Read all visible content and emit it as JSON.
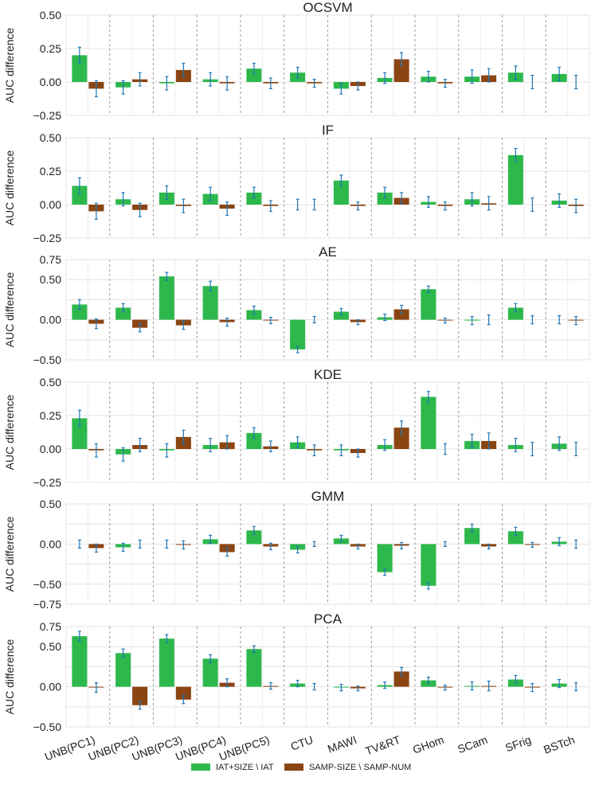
{
  "chart_data": {
    "type": "bar",
    "ylabel": "AUC difference",
    "categories": [
      "UNB(PC1)",
      "UNB(PC2)",
      "UNB(PC3)",
      "UNB(PC4)",
      "UNB(PC5)",
      "CTU",
      "MAWI",
      "TV&RT",
      "GHom",
      "SCam",
      "SFrig",
      "BSTch"
    ],
    "legend": {
      "placement": "bottom-center",
      "entries": [
        {
          "name": "IAT+SIZE \\ IAT",
          "color": "#2db84c"
        },
        {
          "name": "SAMP-SIZE \\ SAMP-NUM",
          "color": "#8b4513"
        }
      ]
    },
    "error_bar_color": "#1f77b4",
    "grid": true,
    "panels": [
      {
        "title": "OCSVM",
        "ylim": [
          -0.25,
          0.5
        ],
        "yticks": [
          -0.25,
          0.0,
          0.25,
          0.5
        ],
        "ytick_labels": [
          "−0.25",
          "0.00",
          "0.25",
          "0.50"
        ],
        "series": [
          {
            "values": [
              0.2,
              -0.04,
              -0.01,
              0.02,
              0.1,
              0.07,
              -0.05,
              0.03,
              0.04,
              0.04,
              0.07,
              0.06
            ],
            "errors": [
              0.06,
              0.05,
              0.05,
              0.05,
              0.04,
              0.04,
              0.04,
              0.04,
              0.04,
              0.05,
              0.05,
              0.05
            ]
          },
          {
            "values": [
              -0.05,
              0.02,
              0.09,
              -0.01,
              -0.01,
              -0.01,
              -0.03,
              0.17,
              -0.01,
              0.05,
              0.0,
              0.0
            ],
            "errors": [
              0.06,
              0.05,
              0.05,
              0.05,
              0.04,
              0.03,
              0.03,
              0.05,
              0.03,
              0.05,
              0.05,
              0.05
            ]
          }
        ]
      },
      {
        "title": "IF",
        "ylim": [
          -0.25,
          0.5
        ],
        "yticks": [
          -0.25,
          0.0,
          0.25,
          0.5
        ],
        "ytick_labels": [
          "−0.25",
          "0.00",
          "0.25",
          "0.50"
        ],
        "series": [
          {
            "values": [
              0.14,
              0.04,
              0.09,
              0.08,
              0.09,
              0.0,
              0.18,
              0.09,
              0.02,
              0.04,
              0.37,
              0.03
            ],
            "errors": [
              0.06,
              0.05,
              0.05,
              0.05,
              0.04,
              0.04,
              0.04,
              0.04,
              0.04,
              0.05,
              0.05,
              0.05
            ]
          },
          {
            "values": [
              -0.05,
              -0.04,
              -0.01,
              -0.03,
              -0.01,
              0.0,
              -0.01,
              0.05,
              -0.01,
              0.01,
              0.0,
              -0.01
            ],
            "errors": [
              0.06,
              0.05,
              0.05,
              0.05,
              0.04,
              0.04,
              0.03,
              0.04,
              0.03,
              0.05,
              0.05,
              0.05
            ]
          }
        ]
      },
      {
        "title": "AE",
        "ylim": [
          -0.5,
          0.75
        ],
        "yticks": [
          -0.5,
          -0.25,
          0.0,
          0.25,
          0.5,
          0.75
        ],
        "ytick_labels": [
          "−0.50",
          "",
          "0.00",
          "",
          "0.50",
          "0.75"
        ],
        "series": [
          {
            "values": [
              0.19,
              0.15,
              0.54,
              0.42,
              0.12,
              -0.37,
              0.1,
              0.03,
              0.38,
              -0.01,
              0.15,
              0.0
            ],
            "errors": [
              0.06,
              0.05,
              0.05,
              0.06,
              0.05,
              0.04,
              0.04,
              0.04,
              0.04,
              0.05,
              0.05,
              0.05
            ]
          },
          {
            "values": [
              -0.05,
              -0.1,
              -0.07,
              -0.03,
              -0.01,
              0.0,
              -0.03,
              0.13,
              -0.01,
              0.0,
              0.0,
              -0.01
            ],
            "errors": [
              0.06,
              0.05,
              0.05,
              0.05,
              0.04,
              0.04,
              0.03,
              0.05,
              0.03,
              0.06,
              0.05,
              0.05
            ]
          }
        ]
      },
      {
        "title": "KDE",
        "ylim": [
          -0.25,
          0.5
        ],
        "yticks": [
          -0.25,
          0.0,
          0.25,
          0.5
        ],
        "ytick_labels": [
          "−0.25",
          "0.00",
          "0.25",
          "0.50"
        ],
        "series": [
          {
            "values": [
              0.23,
              -0.04,
              -0.01,
              0.03,
              0.12,
              0.05,
              -0.01,
              0.03,
              0.39,
              0.06,
              0.03,
              0.04
            ],
            "errors": [
              0.06,
              0.05,
              0.05,
              0.05,
              0.04,
              0.04,
              0.04,
              0.04,
              0.04,
              0.05,
              0.05,
              0.05
            ]
          },
          {
            "values": [
              -0.01,
              0.03,
              0.09,
              0.05,
              0.02,
              -0.01,
              -0.03,
              0.16,
              0.0,
              0.06,
              0.0,
              0.0
            ],
            "errors": [
              0.05,
              0.05,
              0.05,
              0.05,
              0.04,
              0.04,
              0.03,
              0.05,
              0.04,
              0.06,
              0.05,
              0.05
            ]
          }
        ]
      },
      {
        "title": "GMM",
        "ylim": [
          -0.75,
          0.5
        ],
        "yticks": [
          -0.75,
          -0.5,
          -0.25,
          0.0,
          0.25,
          0.5
        ],
        "ytick_labels": [
          "−0.75",
          "−0.50",
          "",
          "0.00",
          "",
          "0.50"
        ],
        "series": [
          {
            "values": [
              0.0,
              -0.04,
              0.0,
              0.06,
              0.17,
              -0.07,
              0.07,
              -0.35,
              -0.52,
              0.2,
              0.16,
              0.03
            ],
            "errors": [
              0.05,
              0.05,
              0.05,
              0.05,
              0.05,
              0.04,
              0.04,
              0.04,
              0.04,
              0.05,
              0.05,
              0.05
            ]
          },
          {
            "values": [
              -0.05,
              0.0,
              -0.01,
              -0.1,
              -0.03,
              0.0,
              -0.03,
              -0.02,
              0.0,
              -0.03,
              -0.01,
              0.0
            ],
            "errors": [
              0.05,
              0.05,
              0.05,
              0.05,
              0.04,
              0.03,
              0.03,
              0.04,
              0.03,
              0.03,
              0.03,
              0.05
            ]
          }
        ]
      },
      {
        "title": "PCA",
        "ylim": [
          -0.5,
          0.75
        ],
        "yticks": [
          -0.5,
          -0.25,
          0.0,
          0.25,
          0.5,
          0.75
        ],
        "ytick_labels": [
          "−0.50",
          "",
          "0.00",
          "",
          "0.50",
          "0.75"
        ],
        "series": [
          {
            "values": [
              0.63,
              0.42,
              0.6,
              0.35,
              0.47,
              0.04,
              -0.01,
              0.02,
              0.08,
              0.01,
              0.09,
              0.04
            ],
            "errors": [
              0.06,
              0.05,
              0.05,
              0.05,
              0.04,
              0.04,
              0.04,
              0.04,
              0.04,
              0.05,
              0.05,
              0.05
            ]
          },
          {
            "values": [
              -0.01,
              -0.23,
              -0.16,
              0.05,
              0.01,
              0.0,
              -0.02,
              0.19,
              -0.01,
              0.01,
              -0.01,
              0.0
            ],
            "errors": [
              0.06,
              0.05,
              0.05,
              0.05,
              0.04,
              0.04,
              0.03,
              0.05,
              0.03,
              0.06,
              0.05,
              0.05
            ]
          }
        ]
      }
    ]
  }
}
